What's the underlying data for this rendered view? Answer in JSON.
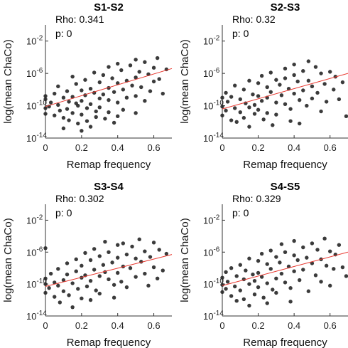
{
  "chart_data": [
    {
      "type": "scatter",
      "title": "S1-S2",
      "xlabel": "Remap frequency",
      "ylabel": "log(mean ChaCo)",
      "xlim": [
        0,
        0.7
      ],
      "ylim_log10": [
        -14,
        0
      ],
      "y_scale": "log",
      "x_ticks": [
        "0",
        "0.2",
        "0.4",
        "0.6"
      ],
      "y_ticks": [
        {
          "base": "10",
          "exp": "-2"
        },
        {
          "base": "10",
          "exp": "-6"
        },
        {
          "base": "10",
          "exp": "-10"
        },
        {
          "base": "10",
          "exp": "-14"
        }
      ],
      "annotations": {
        "rho": "Rho: 0.341",
        "p": "p: 0"
      },
      "marker_color": "#262626",
      "fit_line": {
        "color": "#e8382f",
        "x": [
          0,
          0.7
        ],
        "log10_y": [
          -10.1,
          -5.4
        ]
      },
      "points_log10": [
        [
          0.0,
          -10.3
        ],
        [
          0.0,
          -9.2
        ],
        [
          0.0,
          -11.0
        ],
        [
          0.0,
          -8.8
        ],
        [
          0.02,
          -10.1
        ],
        [
          0.03,
          -9.6
        ],
        [
          0.05,
          -8.5
        ],
        [
          0.05,
          -11.2
        ],
        [
          0.07,
          -7.6
        ],
        [
          0.07,
          -9.9
        ],
        [
          0.08,
          -10.6
        ],
        [
          0.1,
          -9.0
        ],
        [
          0.1,
          -11.5
        ],
        [
          0.1,
          -12.8
        ],
        [
          0.12,
          -8.2
        ],
        [
          0.12,
          -10.4
        ],
        [
          0.13,
          -9.5
        ],
        [
          0.13,
          -11.8
        ],
        [
          0.15,
          -6.4
        ],
        [
          0.15,
          -8.9
        ],
        [
          0.15,
          -10.9
        ],
        [
          0.17,
          -7.3
        ],
        [
          0.17,
          -9.7
        ],
        [
          0.18,
          -12.2
        ],
        [
          0.18,
          -10.0
        ],
        [
          0.2,
          -8.1
        ],
        [
          0.2,
          -9.4
        ],
        [
          0.2,
          -11.1
        ],
        [
          0.2,
          -13.1
        ],
        [
          0.22,
          -6.8
        ],
        [
          0.22,
          -8.7
        ],
        [
          0.23,
          -10.3
        ],
        [
          0.23,
          -11.9
        ],
        [
          0.25,
          -7.9
        ],
        [
          0.25,
          -9.8
        ],
        [
          0.25,
          -12.6
        ],
        [
          0.27,
          -5.9
        ],
        [
          0.27,
          -8.4
        ],
        [
          0.28,
          -10.7
        ],
        [
          0.28,
          -11.4
        ],
        [
          0.3,
          -7.1
        ],
        [
          0.3,
          -9.1
        ],
        [
          0.3,
          -10.2
        ],
        [
          0.32,
          -6.2
        ],
        [
          0.32,
          -8.6
        ],
        [
          0.33,
          -11.6
        ],
        [
          0.35,
          -5.2
        ],
        [
          0.35,
          -7.8
        ],
        [
          0.35,
          -9.3
        ],
        [
          0.35,
          -10.8
        ],
        [
          0.37,
          -6.6
        ],
        [
          0.38,
          -8.3
        ],
        [
          0.38,
          -12.1
        ],
        [
          0.4,
          -4.8
        ],
        [
          0.4,
          -7.2
        ],
        [
          0.4,
          -9.6
        ],
        [
          0.4,
          -11.3
        ],
        [
          0.42,
          -5.6
        ],
        [
          0.43,
          -8.0
        ],
        [
          0.43,
          -10.5
        ],
        [
          0.45,
          -6.9
        ],
        [
          0.45,
          -9.0
        ],
        [
          0.47,
          -5.0
        ],
        [
          0.48,
          -7.5
        ],
        [
          0.5,
          -4.3
        ],
        [
          0.5,
          -6.5
        ],
        [
          0.5,
          -8.8
        ],
        [
          0.5,
          -10.9
        ],
        [
          0.52,
          -5.8
        ],
        [
          0.53,
          -7.7
        ],
        [
          0.55,
          -4.6
        ],
        [
          0.55,
          -9.4
        ],
        [
          0.57,
          -6.1
        ],
        [
          0.58,
          -8.2
        ],
        [
          0.6,
          -5.3
        ],
        [
          0.6,
          -7.0
        ],
        [
          0.62,
          -4.1
        ],
        [
          0.63,
          -6.7
        ],
        [
          0.65,
          -8.5
        ],
        [
          0.67,
          -5.5
        ]
      ]
    },
    {
      "type": "scatter",
      "title": "S2-S3",
      "xlabel": "Remap frequency",
      "ylabel": "log(mean ChaCo)",
      "xlim": [
        0,
        0.7
      ],
      "ylim_log10": [
        -14,
        0
      ],
      "y_scale": "log",
      "x_ticks": [
        "0",
        "0.2",
        "0.4",
        "0.6"
      ],
      "y_ticks": [
        {
          "base": "10",
          "exp": "-2"
        },
        {
          "base": "10",
          "exp": "-6"
        },
        {
          "base": "10",
          "exp": "-10"
        },
        {
          "base": "10",
          "exp": "-14"
        }
      ],
      "annotations": {
        "rho": "Rho: 0.32",
        "p": "p: 0"
      },
      "marker_color": "#262626",
      "fit_line": {
        "color": "#e8382f",
        "x": [
          0,
          0.7
        ],
        "log10_y": [
          -10.4,
          -6.0
        ]
      },
      "points_log10": [
        [
          0.0,
          -10.1
        ],
        [
          0.0,
          -9.0
        ],
        [
          0.0,
          -11.2
        ],
        [
          0.02,
          -8.4
        ],
        [
          0.02,
          -10.6
        ],
        [
          0.03,
          -9.5
        ],
        [
          0.05,
          -11.8
        ],
        [
          0.05,
          -8.9
        ],
        [
          0.07,
          -10.3
        ],
        [
          0.07,
          -7.5
        ],
        [
          0.08,
          -12.0
        ],
        [
          0.1,
          -9.2
        ],
        [
          0.1,
          -10.8
        ],
        [
          0.12,
          -8.0
        ],
        [
          0.12,
          -11.5
        ],
        [
          0.13,
          -9.7
        ],
        [
          0.15,
          -6.9
        ],
        [
          0.15,
          -10.2
        ],
        [
          0.15,
          -12.6
        ],
        [
          0.17,
          -8.6
        ],
        [
          0.18,
          -9.9
        ],
        [
          0.18,
          -11.0
        ],
        [
          0.2,
          -7.2
        ],
        [
          0.2,
          -8.8
        ],
        [
          0.2,
          -10.5
        ],
        [
          0.22,
          -6.3
        ],
        [
          0.22,
          -9.4
        ],
        [
          0.23,
          -11.7
        ],
        [
          0.25,
          -7.7
        ],
        [
          0.25,
          -9.0
        ],
        [
          0.25,
          -10.9
        ],
        [
          0.27,
          -5.9
        ],
        [
          0.27,
          -8.3
        ],
        [
          0.28,
          -12.4
        ],
        [
          0.3,
          -6.8
        ],
        [
          0.3,
          -9.6
        ],
        [
          0.3,
          -11.1
        ],
        [
          0.32,
          -7.4
        ],
        [
          0.33,
          -8.7
        ],
        [
          0.35,
          -5.4
        ],
        [
          0.35,
          -6.6
        ],
        [
          0.35,
          -9.8
        ],
        [
          0.37,
          -7.9
        ],
        [
          0.38,
          -10.4
        ],
        [
          0.38,
          -11.9
        ],
        [
          0.4,
          -4.9
        ],
        [
          0.4,
          -6.2
        ],
        [
          0.4,
          -8.5
        ],
        [
          0.42,
          -7.0
        ],
        [
          0.43,
          -9.3
        ],
        [
          0.43,
          -12.2
        ],
        [
          0.45,
          -5.7
        ],
        [
          0.45,
          -8.1
        ],
        [
          0.47,
          -10.0
        ],
        [
          0.48,
          -4.5
        ],
        [
          0.48,
          -6.9
        ],
        [
          0.5,
          -7.6
        ],
        [
          0.5,
          -9.1
        ],
        [
          0.52,
          -5.2
        ],
        [
          0.53,
          -8.4
        ],
        [
          0.55,
          -6.0
        ],
        [
          0.55,
          -10.7
        ],
        [
          0.57,
          -7.3
        ],
        [
          0.58,
          -9.5
        ],
        [
          0.6,
          -5.8
        ],
        [
          0.62,
          -8.0
        ],
        [
          0.63,
          -6.4
        ],
        [
          0.65,
          -9.2
        ],
        [
          0.67,
          -7.1
        ],
        [
          0.69,
          -11.3
        ]
      ]
    },
    {
      "type": "scatter",
      "title": "S3-S4",
      "xlabel": "Remap frequency",
      "ylabel": "log(mean ChaCo)",
      "xlim": [
        0,
        0.7
      ],
      "ylim_log10": [
        -14,
        0
      ],
      "y_scale": "log",
      "x_ticks": [
        "0",
        "0.2",
        "0.4",
        "0.6"
      ],
      "y_ticks": [
        {
          "base": "10",
          "exp": "-2"
        },
        {
          "base": "10",
          "exp": "-6"
        },
        {
          "base": "10",
          "exp": "-10"
        },
        {
          "base": "10",
          "exp": "-14"
        }
      ],
      "annotations": {
        "rho": "Rho: 0.302",
        "p": "p: 0"
      },
      "marker_color": "#262626",
      "fit_line": {
        "color": "#e8382f",
        "x": [
          0,
          0.7
        ],
        "log10_y": [
          -10.3,
          -6.3
        ]
      },
      "points_log10": [
        [
          0.0,
          -10.0
        ],
        [
          0.0,
          -9.3
        ],
        [
          0.0,
          -11.1
        ],
        [
          0.0,
          -5.5
        ],
        [
          0.02,
          -10.5
        ],
        [
          0.03,
          -8.7
        ],
        [
          0.05,
          -9.8
        ],
        [
          0.05,
          -11.6
        ],
        [
          0.07,
          -8.1
        ],
        [
          0.07,
          -10.2
        ],
        [
          0.08,
          -12.3
        ],
        [
          0.1,
          -9.5
        ],
        [
          0.1,
          -10.9
        ],
        [
          0.12,
          -7.4
        ],
        [
          0.12,
          -8.8
        ],
        [
          0.13,
          -11.4
        ],
        [
          0.15,
          -9.9
        ],
        [
          0.15,
          -12.9
        ],
        [
          0.17,
          -6.9
        ],
        [
          0.17,
          -8.4
        ],
        [
          0.18,
          -10.6
        ],
        [
          0.2,
          -7.7
        ],
        [
          0.2,
          -9.2
        ],
        [
          0.2,
          -11.8
        ],
        [
          0.22,
          -6.1
        ],
        [
          0.22,
          -8.9
        ],
        [
          0.23,
          -10.3
        ],
        [
          0.25,
          -7.0
        ],
        [
          0.25,
          -9.6
        ],
        [
          0.25,
          -12.0
        ],
        [
          0.27,
          -5.6
        ],
        [
          0.27,
          -8.2
        ],
        [
          0.28,
          -10.8
        ],
        [
          0.3,
          -6.5
        ],
        [
          0.3,
          -9.0
        ],
        [
          0.3,
          -11.2
        ],
        [
          0.32,
          -7.6
        ],
        [
          0.33,
          -8.5
        ],
        [
          0.33,
          -4.7
        ],
        [
          0.35,
          -6.0
        ],
        [
          0.35,
          -9.4
        ],
        [
          0.37,
          -7.3
        ],
        [
          0.38,
          -10.1
        ],
        [
          0.38,
          -11.7
        ],
        [
          0.4,
          -5.1
        ],
        [
          0.4,
          -6.7
        ],
        [
          0.4,
          -8.6
        ],
        [
          0.42,
          -9.7
        ],
        [
          0.43,
          -4.9
        ],
        [
          0.43,
          -7.8
        ],
        [
          0.45,
          -6.3
        ],
        [
          0.45,
          -10.4
        ],
        [
          0.47,
          -8.0
        ],
        [
          0.48,
          -5.3
        ],
        [
          0.5,
          -6.8
        ],
        [
          0.5,
          -9.1
        ],
        [
          0.52,
          -4.4
        ],
        [
          0.53,
          -7.2
        ],
        [
          0.55,
          -8.7
        ],
        [
          0.55,
          -5.9
        ],
        [
          0.57,
          -10.2
        ],
        [
          0.58,
          -6.6
        ],
        [
          0.6,
          -4.8
        ],
        [
          0.6,
          -7.9
        ],
        [
          0.62,
          -9.3
        ],
        [
          0.63,
          -5.7
        ],
        [
          0.65,
          -8.3
        ],
        [
          0.67,
          -6.2
        ]
      ]
    },
    {
      "type": "scatter",
      "title": "S4-S5",
      "xlabel": "Remap frequency",
      "ylabel": "log(mean ChaCo)",
      "xlim": [
        0,
        0.7
      ],
      "ylim_log10": [
        -14,
        0
      ],
      "y_scale": "log",
      "x_ticks": [
        "0",
        "0.2",
        "0.4",
        "0.6"
      ],
      "y_ticks": [
        {
          "base": "10",
          "exp": "-2"
        },
        {
          "base": "10",
          "exp": "-6"
        },
        {
          "base": "10",
          "exp": "-10"
        },
        {
          "base": "10",
          "exp": "-14"
        }
      ],
      "annotations": {
        "rho": "Rho: 0.329",
        "p": "p: 0"
      },
      "marker_color": "#262626",
      "fit_line": {
        "color": "#e8382f",
        "x": [
          0,
          0.7
        ],
        "log10_y": [
          -10.2,
          -6.0
        ]
      },
      "points_log10": [
        [
          0.0,
          -10.1
        ],
        [
          0.0,
          -9.2
        ],
        [
          0.0,
          -11.0
        ],
        [
          0.02,
          -8.5
        ],
        [
          0.02,
          -10.6
        ],
        [
          0.03,
          -9.7
        ],
        [
          0.05,
          -11.5
        ],
        [
          0.05,
          -8.0
        ],
        [
          0.07,
          -10.3
        ],
        [
          0.08,
          -9.0
        ],
        [
          0.08,
          -12.1
        ],
        [
          0.1,
          -7.6
        ],
        [
          0.1,
          -10.8
        ],
        [
          0.12,
          -9.4
        ],
        [
          0.12,
          -11.9
        ],
        [
          0.13,
          -8.3
        ],
        [
          0.15,
          -6.8
        ],
        [
          0.15,
          -10.0
        ],
        [
          0.15,
          -12.7
        ],
        [
          0.17,
          -8.8
        ],
        [
          0.18,
          -9.6
        ],
        [
          0.18,
          -11.3
        ],
        [
          0.2,
          -7.1
        ],
        [
          0.2,
          -8.6
        ],
        [
          0.2,
          -10.4
        ],
        [
          0.22,
          -6.2
        ],
        [
          0.22,
          -9.1
        ],
        [
          0.23,
          -11.7
        ],
        [
          0.25,
          -7.5
        ],
        [
          0.25,
          -9.9
        ],
        [
          0.25,
          -12.4
        ],
        [
          0.27,
          -5.8
        ],
        [
          0.27,
          -8.1
        ],
        [
          0.28,
          -10.7
        ],
        [
          0.3,
          -6.6
        ],
        [
          0.3,
          -9.3
        ],
        [
          0.3,
          -11.1
        ],
        [
          0.32,
          -7.3
        ],
        [
          0.33,
          -5.0
        ],
        [
          0.33,
          -8.7
        ],
        [
          0.35,
          -6.0
        ],
        [
          0.35,
          -9.8
        ],
        [
          0.37,
          -7.8
        ],
        [
          0.38,
          -10.5
        ],
        [
          0.38,
          -12.2
        ],
        [
          0.4,
          -4.6
        ],
        [
          0.4,
          -6.4
        ],
        [
          0.4,
          -8.4
        ],
        [
          0.42,
          -7.0
        ],
        [
          0.43,
          -9.5
        ],
        [
          0.45,
          -5.4
        ],
        [
          0.45,
          -8.2
        ],
        [
          0.47,
          -6.7
        ],
        [
          0.48,
          -10.9
        ],
        [
          0.5,
          -4.9
        ],
        [
          0.5,
          -7.4
        ],
        [
          0.52,
          -8.9
        ],
        [
          0.53,
          -5.7
        ],
        [
          0.55,
          -6.9
        ],
        [
          0.55,
          -9.7
        ],
        [
          0.57,
          -4.3
        ],
        [
          0.58,
          -7.7
        ],
        [
          0.6,
          -5.9
        ],
        [
          0.6,
          -10.2
        ],
        [
          0.62,
          -8.1
        ],
        [
          0.63,
          -6.3
        ],
        [
          0.65,
          -5.1
        ],
        [
          0.67,
          -7.9
        ],
        [
          0.69,
          -9.0
        ]
      ]
    }
  ]
}
